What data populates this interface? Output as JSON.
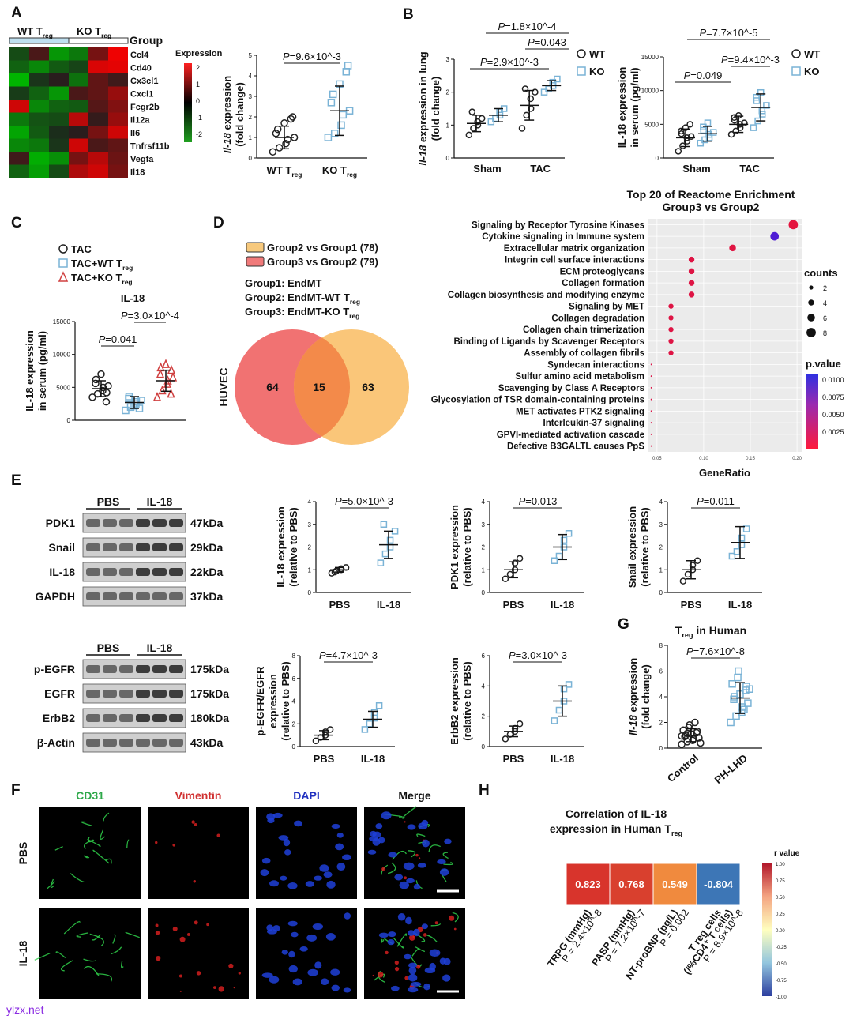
{
  "labels": {
    "A": "A",
    "B": "B",
    "C": "C",
    "D": "D",
    "E": "E",
    "F": "F",
    "G": "G",
    "H": "H"
  },
  "watermark": "ylzx.net",
  "panelA": {
    "heatmap": {
      "group_title": "Group",
      "group_wt": "WT T",
      "group_ko": "KO T",
      "sub": "reg",
      "legend_title": "Expression",
      "legend_ticks": [
        "2",
        "1",
        "0",
        "-1",
        "-2"
      ],
      "genes": [
        "Ccl4",
        "Cd40",
        "Cx3cl1",
        "Cxcl1",
        "Fcgr2b",
        "Il12a",
        "Il6",
        "Tnfrsf11b",
        "Vegfa",
        "Il18"
      ],
      "values": [
        [
          -0.6,
          0.4,
          -1.6,
          -1.2,
          0.8,
          1.9
        ],
        [
          -0.9,
          -1.4,
          -0.8,
          -0.5,
          1.7,
          1.8
        ],
        [
          -2,
          -0.3,
          0.1,
          -1.1,
          0.6,
          0.3
        ],
        [
          -0.4,
          -0.9,
          -1.6,
          0.4,
          0.6,
          1.1
        ],
        [
          1.6,
          -1.4,
          -0.9,
          -0.8,
          0.5,
          0.9
        ],
        [
          -1.2,
          -0.7,
          -0.6,
          1.4,
          0.2,
          1.1
        ],
        [
          -1.8,
          -0.8,
          -0.2,
          0.1,
          0.8,
          1.6
        ],
        [
          -1.4,
          -1.2,
          -0.3,
          1.6,
          0.4,
          0.6
        ],
        [
          0.3,
          -1.9,
          -1.5,
          0.8,
          1.4,
          0.7
        ],
        [
          -0.9,
          -1.7,
          -0.6,
          1.3,
          1.6,
          0.8
        ]
      ]
    },
    "scatter": {
      "ylabel_it": "Il-18",
      "ylabel": " expression",
      "ylabel2": "(fold change)",
      "yticks": [
        "0",
        "1",
        "2",
        "3",
        "4",
        "5"
      ],
      "ylim": [
        0,
        5
      ],
      "pval": "=9.6×10^-3",
      "categories": [
        "WT T",
        "KO T"
      ],
      "sub": "reg",
      "groups": [
        {
          "values": [
            0.3,
            0.5,
            0.7,
            0.9,
            1.0,
            1.2,
            1.4,
            1.7,
            1.9,
            2.0
          ],
          "mean": 1.0,
          "sd": 0.55,
          "marker": "circle",
          "color": "#222"
        },
        {
          "values": [
            1.0,
            1.2,
            1.6,
            2.1,
            2.3,
            2.7,
            3.1,
            3.6,
            4.2,
            4.5
          ],
          "mean": 2.3,
          "sd": 1.2,
          "marker": "square",
          "color": "#7ab3d6"
        }
      ]
    }
  },
  "panelB": {
    "legend": [
      "WT",
      "KO"
    ],
    "lung": {
      "ylabel_it": "Il-18",
      "ylabel": " expression in lung",
      "ylabel2": "(fold change)",
      "yticks": [
        "0",
        "1",
        "2",
        "3"
      ],
      "ylim": [
        0,
        3
      ],
      "categories": [
        "Sham",
        "TAC"
      ],
      "pvals": [
        "=1.8×10^-4",
        "=0.043",
        "=2.9×10^-3"
      ],
      "wt": [
        [
          0.7,
          0.9,
          1.0,
          1.1,
          1.2,
          1.4
        ],
        [
          0.9,
          1.3,
          1.5,
          1.8,
          2.0,
          2.1
        ]
      ],
      "ko": [
        [
          1.1,
          1.2,
          1.3,
          1.4,
          1.5
        ],
        [
          2.0,
          2.1,
          2.2,
          2.3,
          2.4
        ]
      ],
      "wt_stats": [
        [
          1.05,
          0.25
        ],
        [
          1.6,
          0.45
        ]
      ],
      "ko_stats": [
        [
          1.3,
          0.2
        ],
        [
          2.2,
          0.15
        ]
      ]
    },
    "serum": {
      "ylabel": "IL-18 expression",
      "ylabel2": "in serum (pg/ml)",
      "yticks": [
        "0",
        "5000",
        "10000",
        "15000"
      ],
      "ylim": [
        0,
        15000
      ],
      "categories": [
        "Sham",
        "TAC"
      ],
      "pvals": [
        "=7.7×10^-5",
        "=9.4×10^-3",
        "=0.049"
      ],
      "wt": [
        [
          1000,
          1800,
          2500,
          3000,
          3200,
          3600,
          4000,
          4500,
          5000
        ],
        [
          3500,
          4000,
          4500,
          5000,
          5200,
          5600,
          6000,
          6300
        ]
      ],
      "ko": [
        [
          2200,
          2700,
          3000,
          3500,
          3800,
          4100,
          4600,
          5200
        ],
        [
          4500,
          5500,
          6500,
          7000,
          7800,
          8500,
          9000,
          9700
        ]
      ],
      "wt_stats": [
        [
          3000,
          1300
        ],
        [
          5000,
          1200
        ]
      ],
      "ko_stats": [
        [
          3600,
          1100
        ],
        [
          7500,
          2000
        ]
      ]
    }
  },
  "panelC": {
    "legend": [
      "TAC",
      "TAC+WT T",
      "TAC+KO T"
    ],
    "sub": "reg",
    "title": "IL-18",
    "ylabel": "IL-18 expression",
    "ylabel2": "in serum (pg/ml)",
    "yticks": [
      "0",
      "5000",
      "10000",
      "15000"
    ],
    "ylim": [
      0,
      15000
    ],
    "pvals": [
      "=3.0×10^-4",
      "=0.041"
    ],
    "groups": [
      {
        "values": [
          3500,
          4000,
          4500,
          5000,
          5200,
          5600,
          6200,
          7000,
          2800,
          4200
        ],
        "mean": 4800,
        "sd": 1200
      },
      {
        "values": [
          1500,
          2000,
          2500,
          2800,
          3000,
          3300,
          3600,
          2200,
          1800
        ],
        "mean": 2700,
        "sd": 900
      },
      {
        "values": [
          3500,
          4500,
          5500,
          6000,
          6500,
          7000,
          8000,
          8500,
          4000,
          7600
        ],
        "mean": 6000,
        "sd": 1600
      }
    ]
  },
  "panelD": {
    "legend": [
      {
        "label": "Group2  vs Group1 (78)",
        "color": "#f7c97d"
      },
      {
        "label": "Group3  vs Group2 (79)",
        "color": "#f07a7a"
      }
    ],
    "groups": [
      "Group1: EndMT",
      "Group2: EndMT-WT T",
      "Group3: EndMT-KO T"
    ],
    "sub": "reg",
    "venn_label": "HUVEC",
    "venn_counts": [
      "64",
      "15",
      "63"
    ]
  },
  "enrichment": {
    "title": "Top 20 of Reactome Enrichment",
    "subtitle": "Group3  vs Group2",
    "xlabel": "GeneRatio",
    "xticks": [
      "0.05",
      "0.10",
      "0.15",
      "0.20"
    ],
    "counts_title": "counts",
    "counts_ticks": [
      "2",
      "4",
      "6",
      "8"
    ],
    "pvalue_title": "p.value",
    "pvalue_ticks": [
      "0.0100",
      "0.0075",
      "0.0050",
      "0.0025"
    ],
    "terms": [
      {
        "name": "Signaling by Receptor Tyrosine Kinases",
        "ratio": 0.196,
        "count": 8,
        "p": 0.0006
      },
      {
        "name": "Cytokine signaling in Immune system",
        "ratio": 0.176,
        "count": 7,
        "p": 0.0085
      },
      {
        "name": "Extracellular matrix organization",
        "ratio": 0.131,
        "count": 5,
        "p": 0.0008
      },
      {
        "name": "Integrin cell surface interactions",
        "ratio": 0.087,
        "count": 4,
        "p": 0.0009
      },
      {
        "name": "ECM proteoglycans",
        "ratio": 0.087,
        "count": 4,
        "p": 0.0009
      },
      {
        "name": "Collagen formation",
        "ratio": 0.087,
        "count": 4,
        "p": 0.0009
      },
      {
        "name": "Collagen biosynthesis and modifying enzyme",
        "ratio": 0.087,
        "count": 4,
        "p": 0.0009
      },
      {
        "name": "Signaling by MET",
        "ratio": 0.065,
        "count": 3,
        "p": 0.0009
      },
      {
        "name": "Collagen degradation",
        "ratio": 0.065,
        "count": 3,
        "p": 0.0009
      },
      {
        "name": "Collagen chain trimerization",
        "ratio": 0.065,
        "count": 3,
        "p": 0.0009
      },
      {
        "name": "Binding of Ligands by Scavenger Receptors",
        "ratio": 0.065,
        "count": 3,
        "p": 0.0009
      },
      {
        "name": "Assembly of collagen fibrils",
        "ratio": 0.065,
        "count": 3,
        "p": 0.0009
      },
      {
        "name": "Syndecan interactions",
        "ratio": 0.044,
        "count": 1,
        "p": 0.0011
      },
      {
        "name": "Sulfur amino acid metabolism",
        "ratio": 0.044,
        "count": 1,
        "p": 0.0011
      },
      {
        "name": "Scavenging by Class A Receptors",
        "ratio": 0.044,
        "count": 1,
        "p": 0.0011
      },
      {
        "name": "Glycosylation of TSR domain-containing proteins",
        "ratio": 0.044,
        "count": 1,
        "p": 0.0011
      },
      {
        "name": "MET activates PTK2 signaling",
        "ratio": 0.044,
        "count": 1,
        "p": 0.0011
      },
      {
        "name": "Interleukin-37 signaling",
        "ratio": 0.044,
        "count": 1,
        "p": 0.0011
      },
      {
        "name": "GPVI-mediated activation cascade",
        "ratio": 0.044,
        "count": 1,
        "p": 0.0011
      },
      {
        "name": "Defective B3GALTL causes PpS",
        "ratio": 0.044,
        "count": 1,
        "p": 0.0011
      }
    ]
  },
  "panelE": {
    "blot1": {
      "groups": [
        "PBS",
        "IL-18"
      ],
      "rows": [
        {
          "name": "PDK1",
          "kda": "47kDa"
        },
        {
          "name": "Snail",
          "kda": "29kDa"
        },
        {
          "name": "IL-18",
          "kda": "22kDa"
        },
        {
          "name": "GAPDH",
          "kda": "37kDa"
        }
      ]
    },
    "blot2": {
      "groups": [
        "PBS",
        "IL-18"
      ],
      "rows": [
        {
          "name": "p-EGFR",
          "kda": "175kDa"
        },
        {
          "name": "EGFR",
          "kda": "175kDa"
        },
        {
          "name": "ErbB2",
          "kda": "180kDa"
        },
        {
          "name": "β-Actin",
          "kda": "43kDa"
        }
      ]
    },
    "plots": [
      {
        "ylabel": "IL-18 expression",
        "ylabel2": "(relative to PBS)",
        "pval": "=5.0×10^-3",
        "yticks": [
          "0",
          "1",
          "2",
          "3",
          "4"
        ],
        "ylim": [
          0,
          4
        ],
        "pbs": [
          0.85,
          0.95,
          1.0,
          1.05,
          1.1,
          0.9
        ],
        "il": [
          1.3,
          1.7,
          2.0,
          2.3,
          2.7,
          3.0
        ],
        "pbs_stats": [
          1.0,
          0.1
        ],
        "il_stats": [
          2.1,
          0.6
        ]
      },
      {
        "ylabel": "PDK1 expression",
        "ylabel2": "(relative to PBS)",
        "pval": "=0.013",
        "yticks": [
          "0",
          "1",
          "2",
          "3",
          "4"
        ],
        "ylim": [
          0,
          4
        ],
        "pbs": [
          0.6,
          0.8,
          1.0,
          1.3,
          1.5
        ],
        "il": [
          1.4,
          1.6,
          2.0,
          2.3,
          2.6
        ],
        "pbs_stats": [
          1.0,
          0.35
        ],
        "il_stats": [
          2.0,
          0.55
        ]
      },
      {
        "ylabel": "Snail expression",
        "ylabel2": "(relative to PBS)",
        "pval": "=0.011",
        "yticks": [
          "0",
          "1",
          "2",
          "3",
          "4"
        ],
        "ylim": [
          0,
          4
        ],
        "pbs": [
          0.5,
          0.8,
          1.0,
          1.2,
          1.4
        ],
        "il": [
          1.6,
          1.8,
          2.1,
          2.4,
          2.8
        ],
        "pbs_stats": [
          1.0,
          0.4
        ],
        "il_stats": [
          2.2,
          0.7
        ]
      },
      {
        "ylabel": "p-EGFR/EGFR",
        "ylabel2": "expression",
        "ylabel3": "(relative to PBS)",
        "pval": "=4.7×10^-3",
        "yticks": [
          "0",
          "2",
          "4",
          "6",
          "8"
        ],
        "ylim": [
          0,
          8
        ],
        "pbs": [
          0.5,
          0.8,
          1.0,
          1.3,
          1.5
        ],
        "il": [
          1.5,
          2.0,
          2.5,
          3.0,
          3.6
        ],
        "pbs_stats": [
          1.0,
          0.4
        ],
        "il_stats": [
          2.4,
          0.7
        ]
      },
      {
        "ylabel": "ErbB2 expression",
        "ylabel2": "(relative to PBS)",
        "pval": "=3.0×10^-3",
        "yticks": [
          "0",
          "2",
          "4",
          "6"
        ],
        "ylim": [
          0,
          6
        ],
        "pbs": [
          0.5,
          0.8,
          1.0,
          1.2,
          1.5
        ],
        "il": [
          1.7,
          2.4,
          3.0,
          3.8,
          4.1
        ],
        "pbs_stats": [
          1.0,
          0.35
        ],
        "il_stats": [
          3.0,
          1.0
        ]
      }
    ],
    "categories": [
      "PBS",
      "IL-18"
    ]
  },
  "panelF": {
    "cols": [
      {
        "label": "CD31",
        "color": "#2ea84a"
      },
      {
        "label": "Vimentin",
        "color": "#d03030"
      },
      {
        "label": "DAPI",
        "color": "#2030c0"
      },
      {
        "label": "Merge",
        "color": "#111111"
      }
    ],
    "rows": [
      "PBS",
      "IL-18"
    ]
  },
  "panelG": {
    "title": "T",
    "title_tail": " in Human",
    "sub": "reg",
    "ylabel_it": "Il-18",
    "ylabel": " expression",
    "ylabel2": "(fold change)",
    "pval": "=7.6×10^-8",
    "yticks": [
      "0",
      "2",
      "4",
      "6",
      "8"
    ],
    "ylim": [
      0,
      8
    ],
    "categories": [
      "Control",
      "PH-LHD"
    ],
    "groups": [
      {
        "values": [
          0.3,
          0.5,
          0.6,
          0.7,
          0.8,
          0.9,
          1.0,
          1.1,
          1.2,
          1.3,
          1.4,
          1.6,
          1.8,
          2.0,
          0.4,
          0.95,
          1.15
        ],
        "mean": 1.0,
        "sd": 0.5,
        "marker": "circle",
        "color": "#222"
      },
      {
        "values": [
          2.0,
          2.5,
          2.8,
          3.2,
          3.5,
          3.8,
          4.0,
          4.2,
          4.5,
          4.8,
          5.0,
          5.5,
          6.0,
          3.0,
          4.6
        ],
        "mean": 3.9,
        "sd": 1.2,
        "marker": "square",
        "color": "#7ab3d6"
      }
    ]
  },
  "panelH": {
    "title": "Correlation of IL-18",
    "title2": "expression in Human T",
    "sub": "reg",
    "legend_title": "r value",
    "legend_ticks": [
      "1.00",
      "0.75",
      "0.50",
      "0.25",
      "0.00",
      "-0.25",
      "-0.50",
      "-0.75",
      "-1.00"
    ],
    "cells": [
      {
        "value": 0.823,
        "label": "0.823",
        "name": "TRPG (mmHg)",
        "p": "P = 2.4×10^-8",
        "color": "#d8342c"
      },
      {
        "value": 0.768,
        "label": "0.768",
        "name": "PASP (mmHg)",
        "p": "P = 7.2×10^-7",
        "color": "#d9402e"
      },
      {
        "value": 0.549,
        "label": "0.549",
        "name": "NT-proBNP (pg/L)",
        "p": "P = 0.002",
        "color": "#f08a3e"
      },
      {
        "value": -0.804,
        "label": "-0.804",
        "name": "T reg cells",
        "name2": "(/%CD4⁺ T cells)",
        "p": "P = 8.9×10^-8",
        "color": "#3d76b6"
      }
    ]
  }
}
